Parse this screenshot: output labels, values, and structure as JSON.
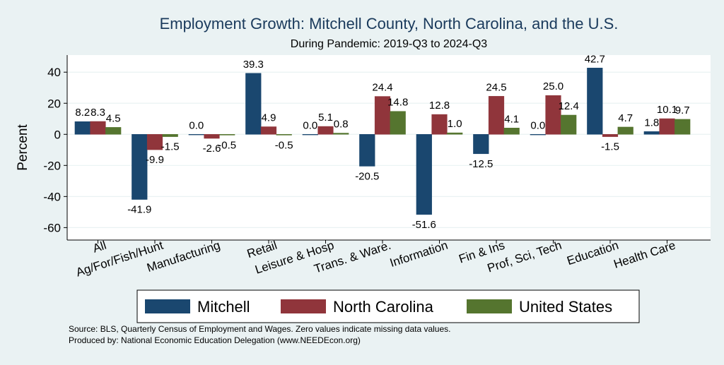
{
  "chart_data": {
    "type": "bar",
    "title": "Employment Growth: Mitchell County, North Carolina, and the U.S.",
    "subtitle": "During Pandemic: 2019-Q3 to 2024-Q3",
    "ylabel": "Percent",
    "xlabel": "",
    "ylim": [
      -68,
      51
    ],
    "yticks": [
      -60,
      -40,
      -20,
      0,
      20,
      40
    ],
    "grid": true,
    "legend_position": "bottom",
    "categories": [
      "All",
      "Ag/For/Fish/Hunt",
      "Manufacturing",
      "Retail",
      "Leisure & Hosp",
      "Trans. & Ware.",
      "Information",
      "Fin & Ins",
      "Prof, Sci, Tech",
      "Education",
      "Health Care"
    ],
    "series": [
      {
        "name": "Mitchell",
        "color": "#1a476f",
        "values": [
          8.2,
          -41.9,
          0.0,
          39.3,
          0.0,
          -20.5,
          -51.6,
          -12.5,
          0.0,
          42.7,
          1.8
        ],
        "labels": [
          "8.2",
          "-41.9",
          "0.0",
          "39.3",
          "0.0",
          "-20.5",
          "-51.6",
          "-12.5",
          "0.0",
          "42.7",
          "1.8"
        ]
      },
      {
        "name": "North Carolina",
        "color": "#90353b",
        "values": [
          8.3,
          -9.9,
          -2.6,
          4.9,
          5.1,
          24.4,
          12.8,
          24.5,
          25.0,
          -1.5,
          10.1
        ],
        "labels": [
          "8.3",
          "-9.9",
          "-2.6",
          "4.9",
          "5.1",
          "24.4",
          "12.8",
          "24.5",
          "25.0",
          "-1.5",
          "10.1"
        ]
      },
      {
        "name": "United States",
        "color": "#55752f",
        "values": [
          4.5,
          -1.5,
          -0.5,
          -0.5,
          0.8,
          14.8,
          1.0,
          4.1,
          12.4,
          4.7,
          9.7
        ],
        "labels": [
          "4.5",
          "-1.5",
          "-0.5",
          "-0.5",
          "0.8",
          "14.8",
          "1.0",
          "4.1",
          "12.4",
          "4.7",
          "9.7"
        ]
      }
    ]
  },
  "footer": {
    "source": "Source: BLS, Quarterly Census of Employment and Wages. Zero values indicate missing data values.",
    "produced": "Produced by: National Economic Education Delegation (www.NEEDEcon.org)"
  }
}
